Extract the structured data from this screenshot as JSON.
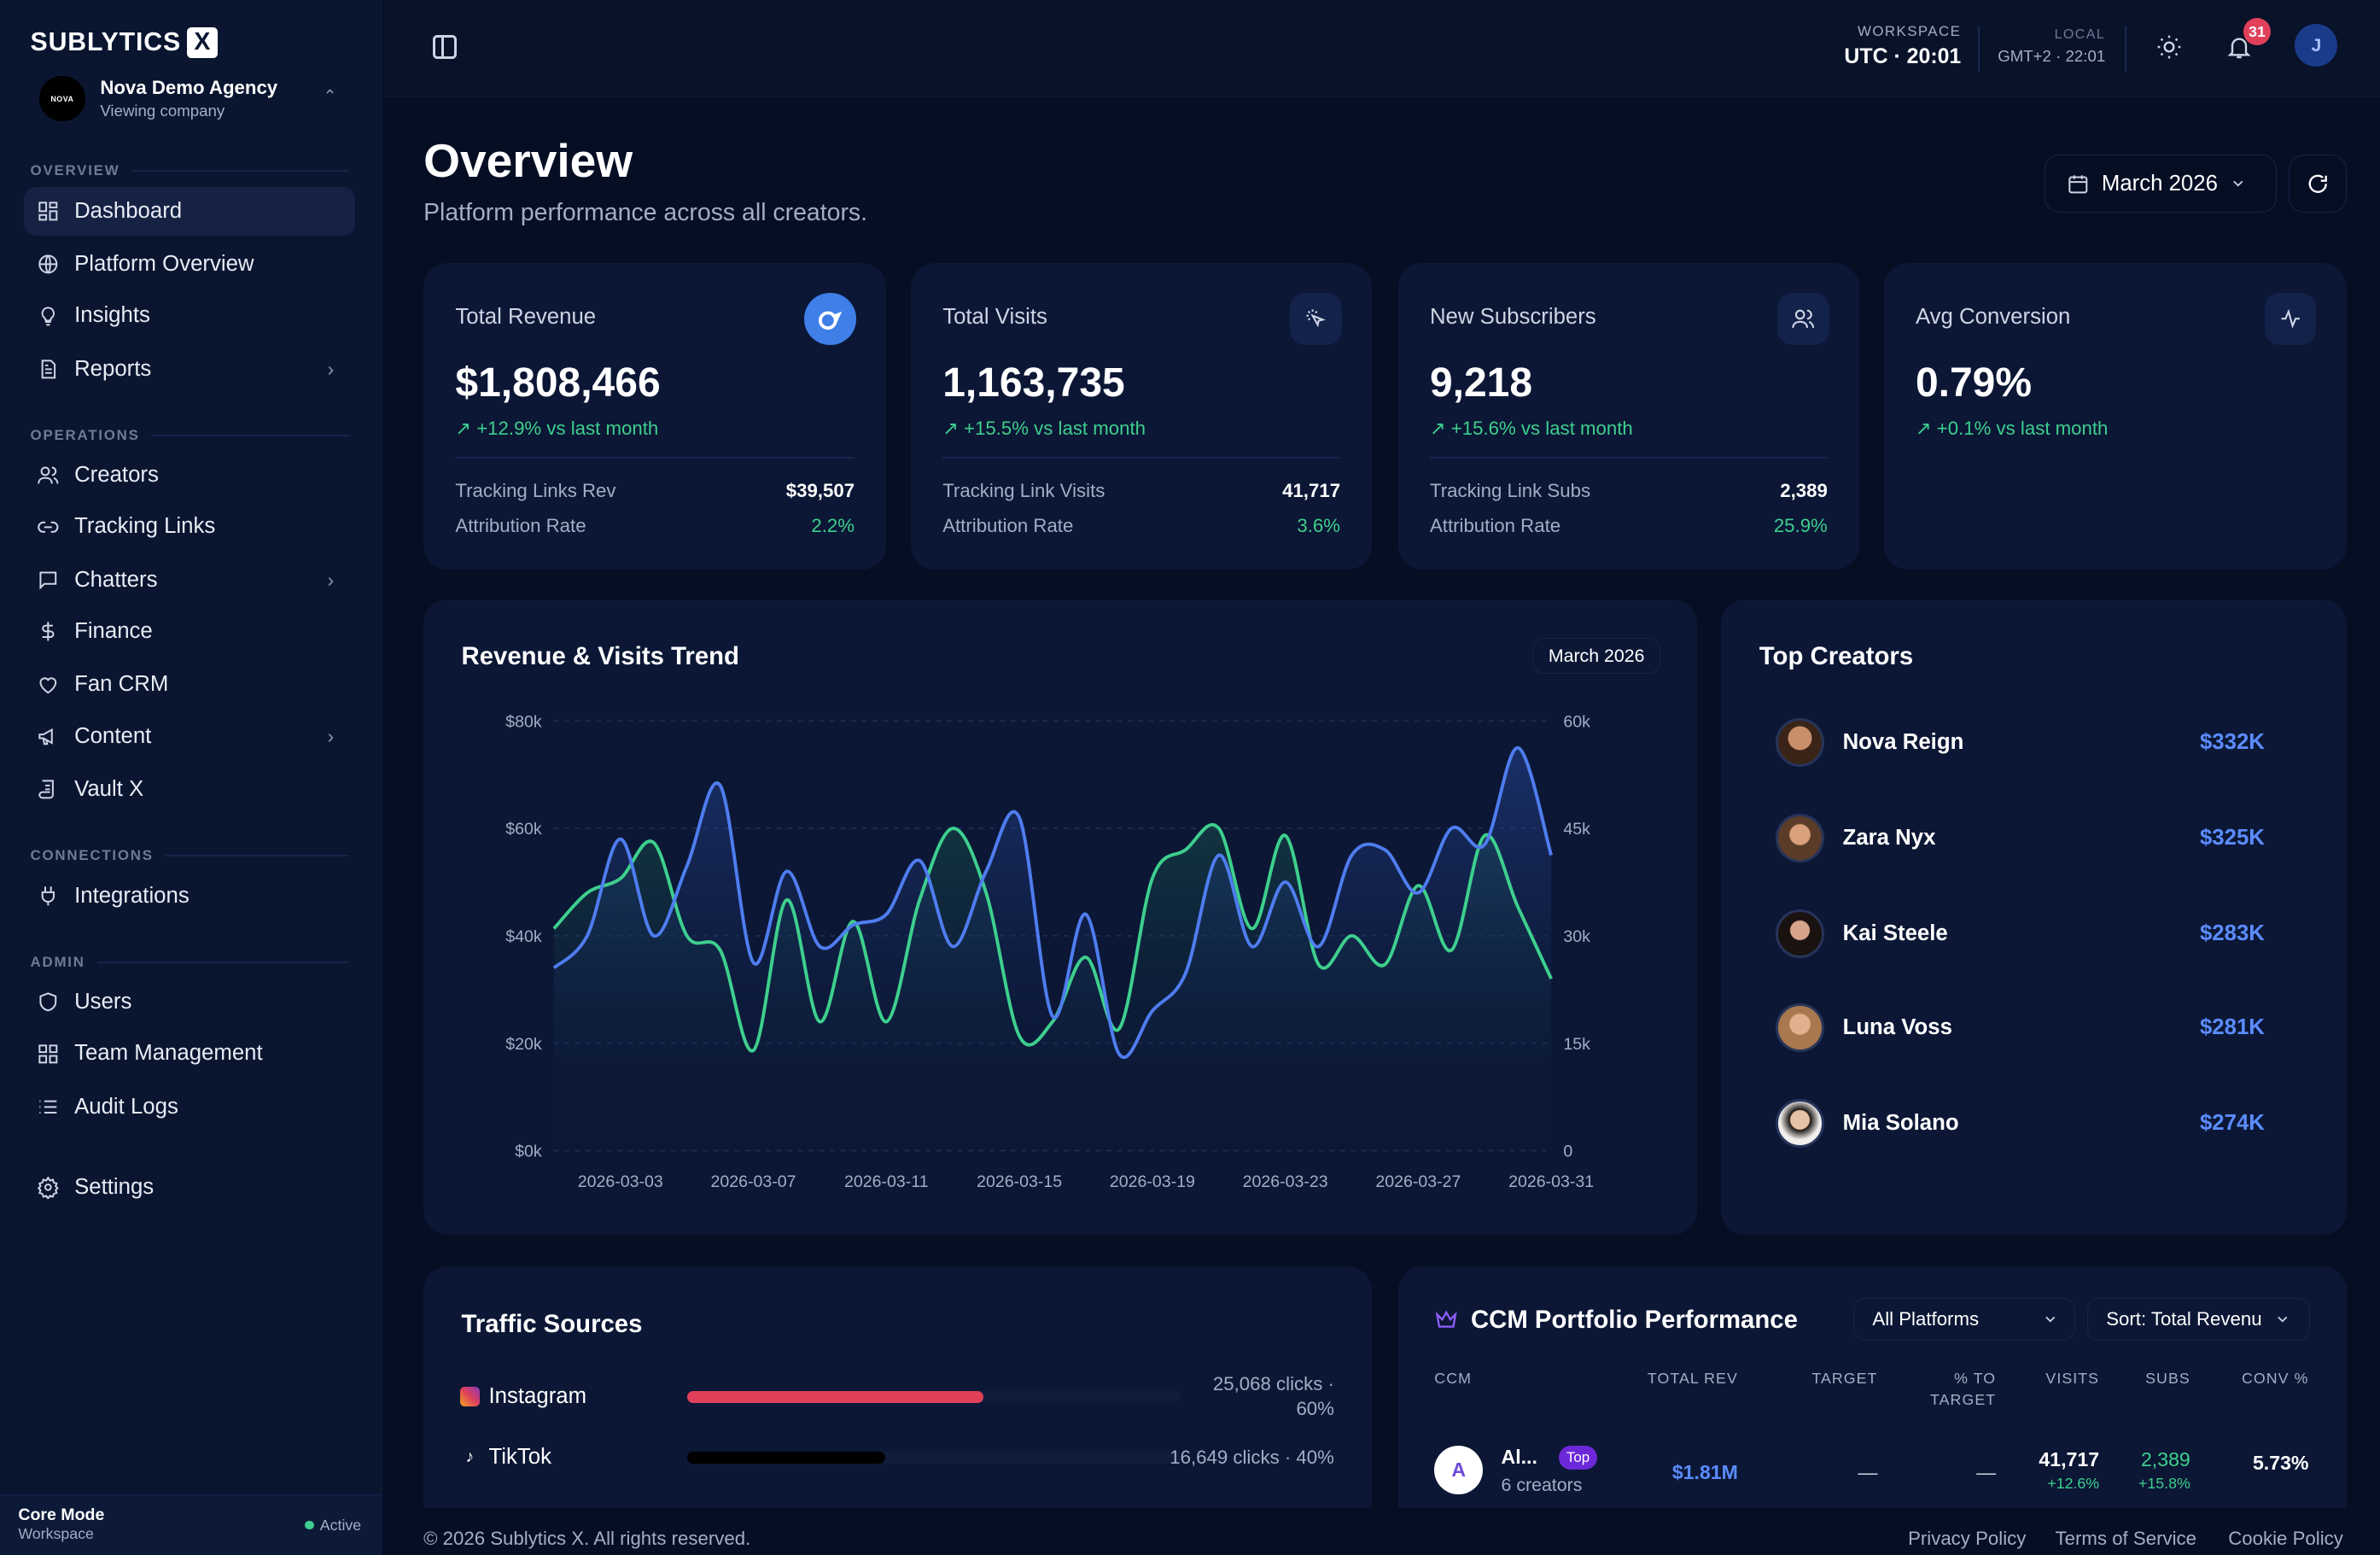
{
  "brand": {
    "name": "SUBLYTICS",
    "mark": "X"
  },
  "company": {
    "logo_text": "NOVA",
    "name": "Nova Demo Agency",
    "sub": "Viewing company"
  },
  "sidebar": {
    "sections": {
      "overview": "OVERVIEW",
      "operations": "OPERATIONS",
      "connections": "CONNECTIONS",
      "admin": "ADMIN"
    },
    "items": [
      {
        "label": "Dashboard",
        "icon": "grid-icon"
      },
      {
        "label": "Platform Overview",
        "icon": "globe-icon"
      },
      {
        "label": "Insights",
        "icon": "lightbulb-icon"
      },
      {
        "label": "Reports",
        "icon": "document-icon"
      },
      {
        "label": "Creators",
        "icon": "users-icon"
      },
      {
        "label": "Tracking Links",
        "icon": "link-icon"
      },
      {
        "label": "Chatters",
        "icon": "chat-icon"
      },
      {
        "label": "Finance",
        "icon": "dollar-icon"
      },
      {
        "label": "Fan CRM",
        "icon": "heart-icon"
      },
      {
        "label": "Content",
        "icon": "megaphone-icon"
      },
      {
        "label": "Vault X",
        "icon": "scroll-icon"
      },
      {
        "label": "Integrations",
        "icon": "plug-icon"
      },
      {
        "label": "Users",
        "icon": "shield-icon"
      },
      {
        "label": "Team Management",
        "icon": "grid-icon"
      },
      {
        "label": "Audit Logs",
        "icon": "list-icon"
      },
      {
        "label": "Settings",
        "icon": "gear-icon"
      }
    ],
    "core_mode": {
      "title": "Core Mode",
      "sub": "Workspace",
      "status": "Active"
    }
  },
  "topbar": {
    "workspace_label": "WORKSPACE",
    "workspace_time": "UTC · 20:01",
    "local_label": "LOCAL",
    "local_time": "GMT+2 · 22:01",
    "notifications": "31",
    "avatar_initial": "J"
  },
  "header": {
    "title": "Overview",
    "subtitle": "Platform performance across all creators.",
    "month": "March 2026"
  },
  "kpis": [
    {
      "title": "Total Revenue",
      "value": "$1,808,466",
      "delta": "+12.9% vs last month",
      "row1_label": "Tracking Links Rev",
      "row1_value": "$39,507",
      "row2_label": "Attribution Rate",
      "row2_value": "2.2%"
    },
    {
      "title": "Total Visits",
      "value": "1,163,735",
      "delta": "+15.5% vs last month",
      "row1_label": "Tracking Link Visits",
      "row1_value": "41,717",
      "row2_label": "Attribution Rate",
      "row2_value": "3.6%"
    },
    {
      "title": "New Subscribers",
      "value": "9,218",
      "delta": "+15.6% vs last month",
      "row1_label": "Tracking Link Subs",
      "row1_value": "2,389",
      "row2_label": "Attribution Rate",
      "row2_value": "25.9%"
    },
    {
      "title": "Avg Conversion",
      "value": "0.79%",
      "delta": "+0.1% vs last month"
    }
  ],
  "trend": {
    "title": "Revenue & Visits Trend",
    "pill": "March 2026"
  },
  "chart_data": {
    "type": "area",
    "title": "Revenue & Visits Trend",
    "x": [
      "2026-03-01",
      "2026-03-02",
      "2026-03-03",
      "2026-03-04",
      "2026-03-05",
      "2026-03-06",
      "2026-03-07",
      "2026-03-08",
      "2026-03-09",
      "2026-03-10",
      "2026-03-11",
      "2026-03-12",
      "2026-03-13",
      "2026-03-14",
      "2026-03-15",
      "2026-03-16",
      "2026-03-17",
      "2026-03-18",
      "2026-03-19",
      "2026-03-20",
      "2026-03-21",
      "2026-03-22",
      "2026-03-23",
      "2026-03-24",
      "2026-03-25",
      "2026-03-26",
      "2026-03-27",
      "2026-03-28",
      "2026-03-29",
      "2026-03-30",
      "2026-03-31"
    ],
    "x_ticks": [
      "2026-03-03",
      "2026-03-07",
      "2026-03-11",
      "2026-03-15",
      "2026-03-19",
      "2026-03-23",
      "2026-03-27",
      "2026-03-31"
    ],
    "y_left": {
      "ticks": [
        "$0k",
        "$20k",
        "$40k",
        "$60k",
        "$80k"
      ],
      "lim": [
        0,
        80000
      ]
    },
    "y_right": {
      "ticks": [
        "0",
        "15k",
        "30k",
        "45k",
        "60k"
      ],
      "lim": [
        0,
        60000
      ]
    },
    "series": [
      {
        "axis": "left",
        "color": "#4f7df0",
        "values": [
          34000,
          40000,
          58000,
          40000,
          53000,
          68000,
          35000,
          52000,
          38000,
          42000,
          44000,
          54000,
          38000,
          52000,
          62000,
          25000,
          44000,
          18000,
          26000,
          33000,
          55000,
          38000,
          50000,
          38000,
          55000,
          56000,
          48000,
          60000,
          57000,
          75000,
          55000
        ]
      },
      {
        "axis": "right",
        "color": "#3ecf8e",
        "values": [
          31000,
          36000,
          38000,
          43000,
          30000,
          28000,
          14000,
          35000,
          18000,
          32000,
          18000,
          35000,
          45000,
          36000,
          16000,
          18000,
          27000,
          17000,
          38000,
          42000,
          45000,
          31000,
          44000,
          26000,
          30000,
          26000,
          37000,
          28000,
          44000,
          34000,
          24000
        ]
      }
    ]
  },
  "top_creators": {
    "title": "Top Creators",
    "items": [
      {
        "name": "Nova Reign",
        "value": "$332K"
      },
      {
        "name": "Zara Nyx",
        "value": "$325K"
      },
      {
        "name": "Kai Steele",
        "value": "$283K"
      },
      {
        "name": "Luna Voss",
        "value": "$281K"
      },
      {
        "name": "Mia Solano",
        "value": "$274K"
      }
    ]
  },
  "traffic": {
    "title": "Traffic Sources",
    "rows": [
      {
        "name": "Instagram",
        "clicks": "25,068 clicks ·",
        "pct": "60%",
        "fraction": 0.6,
        "color": "#e0405a"
      },
      {
        "name": "TikTok",
        "clicks": "16,649 clicks · 40%",
        "fraction": 0.4,
        "color": "#000000"
      }
    ]
  },
  "ccm": {
    "title": "CCM Portfolio Performance",
    "platforms": "All Platforms",
    "sort": "Sort: Total Revenu",
    "headers": {
      "ccm": "CCM",
      "total_rev": "TOTAL REV",
      "target": "TARGET",
      "pct_to": "% TO",
      "pct_target": "TARGET",
      "visits": "VISITS",
      "subs": "SUBS",
      "conv": "CONV %"
    },
    "row": {
      "initial": "A",
      "name": "Al...",
      "tag": "Top",
      "creators": "6 creators",
      "total_rev": "$1.81M",
      "target": "—",
      "pct": "—",
      "visits": "41,717",
      "visits_delta": "+12.6%",
      "subs": "2,389",
      "subs_delta": "+15.8%",
      "conv": "5.73%"
    }
  },
  "footer": {
    "copy": "© 2026 Sublytics X. All rights reserved.",
    "privacy": "Privacy Policy",
    "terms": "Terms of Service",
    "cookie": "Cookie Policy"
  }
}
